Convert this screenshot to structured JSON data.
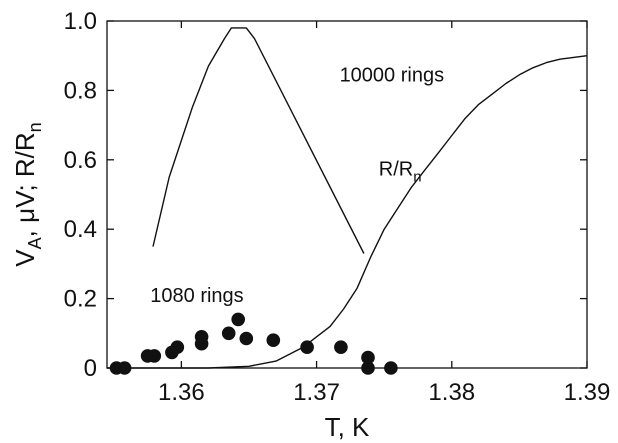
{
  "chart_data": {
    "type": "line",
    "xlabel": "T, K",
    "ylabel": "V_A, μV; R/R_n",
    "xlim": [
      1.3545,
      1.39
    ],
    "ylim": [
      0.0,
      1.0
    ],
    "x_ticks": [
      {
        "value": 1.36,
        "label": "1.36"
      },
      {
        "value": 1.37,
        "label": "1.37"
      },
      {
        "value": 1.38,
        "label": "1.38"
      },
      {
        "value": 1.39,
        "label": "1.39"
      }
    ],
    "y_ticks": [
      {
        "value": 0.0,
        "label": "0"
      },
      {
        "value": 0.2,
        "label": "0.2"
      },
      {
        "value": 0.4,
        "label": "0.4"
      },
      {
        "value": 0.6,
        "label": "0.6"
      },
      {
        "value": 0.8,
        "label": "0.8"
      },
      {
        "value": 1.0,
        "label": "1.0"
      }
    ],
    "grid": false,
    "series": [
      {
        "name": "10000 rings",
        "kind": "line",
        "points": [
          [
            1.3579,
            0.35
          ],
          [
            1.3591,
            0.55
          ],
          [
            1.3608,
            0.75
          ],
          [
            1.362,
            0.87
          ],
          [
            1.3632,
            0.95
          ],
          [
            1.3637,
            0.98
          ],
          [
            1.3648,
            0.98
          ],
          [
            1.3654,
            0.95
          ],
          [
            1.3735,
            0.33
          ]
        ]
      },
      {
        "name": "R/R_n",
        "kind": "line",
        "points": [
          [
            1.3545,
            0.0
          ],
          [
            1.358,
            0.0
          ],
          [
            1.362,
            0.0
          ],
          [
            1.365,
            0.005
          ],
          [
            1.367,
            0.02
          ],
          [
            1.369,
            0.06
          ],
          [
            1.371,
            0.12
          ],
          [
            1.372,
            0.17
          ],
          [
            1.373,
            0.23
          ],
          [
            1.374,
            0.32
          ],
          [
            1.375,
            0.4
          ],
          [
            1.376,
            0.46
          ],
          [
            1.377,
            0.52
          ],
          [
            1.378,
            0.57
          ],
          [
            1.379,
            0.62
          ],
          [
            1.38,
            0.67
          ],
          [
            1.381,
            0.72
          ],
          [
            1.382,
            0.76
          ],
          [
            1.383,
            0.79
          ],
          [
            1.384,
            0.82
          ],
          [
            1.385,
            0.845
          ],
          [
            1.386,
            0.865
          ],
          [
            1.387,
            0.88
          ],
          [
            1.388,
            0.89
          ],
          [
            1.389,
            0.895
          ],
          [
            1.39,
            0.9
          ]
        ]
      },
      {
        "name": "1080 rings",
        "kind": "scatter",
        "points": [
          [
            1.3552,
            0.0
          ],
          [
            1.3558,
            0.0
          ],
          [
            1.3575,
            0.035
          ],
          [
            1.358,
            0.035
          ],
          [
            1.3593,
            0.045
          ],
          [
            1.3597,
            0.06
          ],
          [
            1.3615,
            0.07
          ],
          [
            1.3615,
            0.09
          ],
          [
            1.3635,
            0.1
          ],
          [
            1.3642,
            0.14
          ],
          [
            1.3648,
            0.085
          ],
          [
            1.3668,
            0.08
          ],
          [
            1.3693,
            0.06
          ],
          [
            1.3718,
            0.06
          ],
          [
            1.3738,
            0.03
          ],
          [
            1.3738,
            0.0
          ],
          [
            1.3755,
            0.0
          ]
        ]
      }
    ],
    "annotations": [
      {
        "text": "10000 rings",
        "x": 1.3717,
        "y": 0.825
      },
      {
        "text": "1080 rings",
        "x": 1.3577,
        "y": 0.19
      },
      {
        "text_main": "R/R",
        "text_sub": "n",
        "x": 1.3746,
        "y": 0.555
      }
    ]
  }
}
